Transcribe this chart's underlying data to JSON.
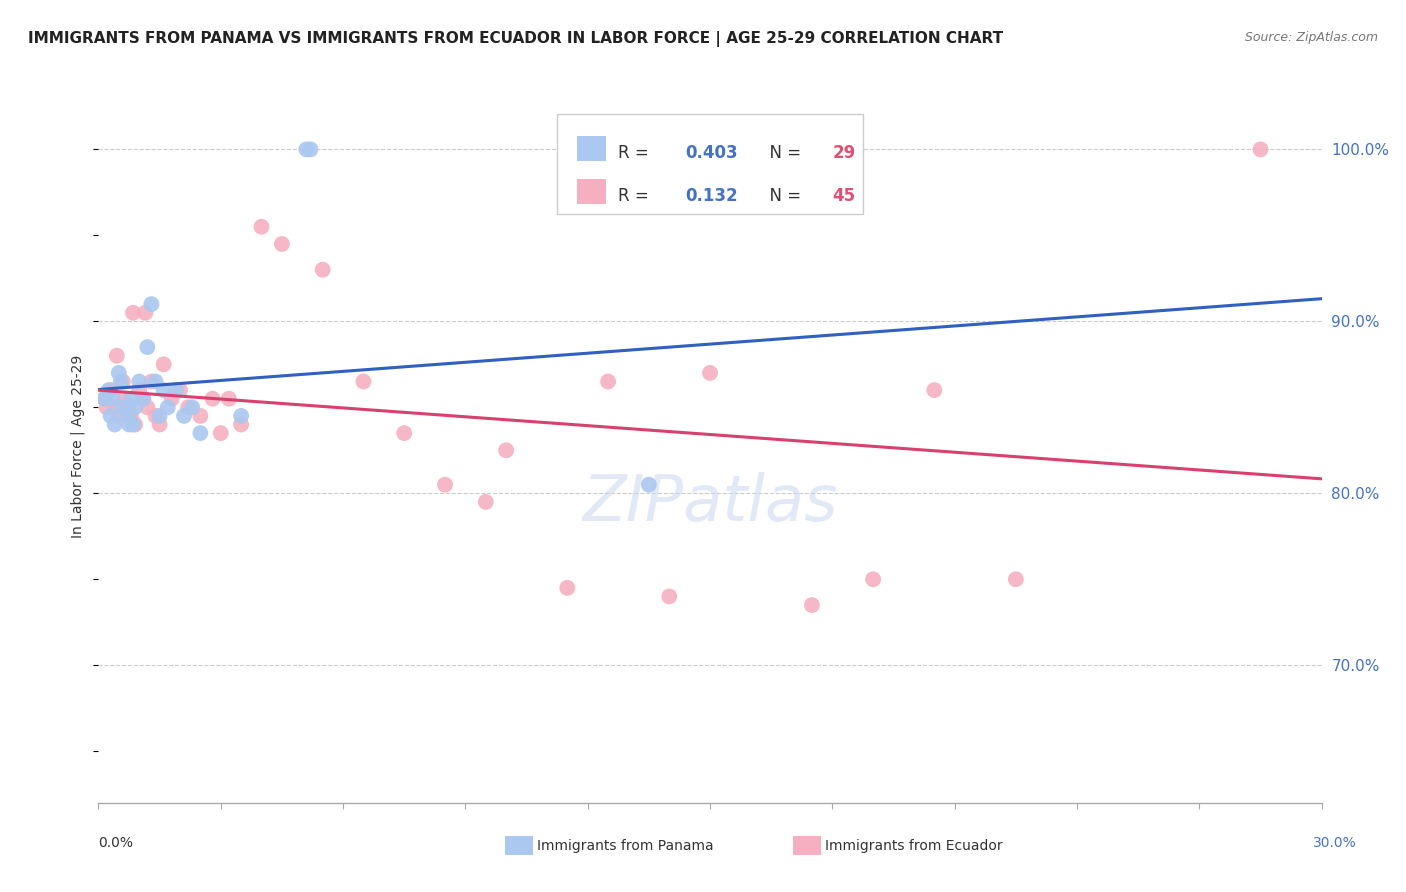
{
  "title": "IMMIGRANTS FROM PANAMA VS IMMIGRANTS FROM ECUADOR IN LABOR FORCE | AGE 25-29 CORRELATION CHART",
  "source": "Source: ZipAtlas.com",
  "ylabel": "In Labor Force | Age 25-29",
  "r_panama": 0.403,
  "n_panama": 29,
  "r_ecuador": 0.132,
  "n_ecuador": 45,
  "xlim": [
    0.0,
    30.0
  ],
  "ylim": [
    62.0,
    103.5
  ],
  "yticks": [
    70.0,
    80.0,
    90.0,
    100.0
  ],
  "xticks": [
    0.0,
    3.0,
    6.0,
    9.0,
    12.0,
    15.0,
    18.0,
    21.0,
    24.0,
    27.0,
    30.0
  ],
  "color_panama": "#aac8f0",
  "color_ecuador": "#f5afc0",
  "color_panama_line": "#3060c0",
  "color_ecuador_line": "#d84070",
  "color_axis_labels": "#4472c4",
  "panama_x": [
    0.15,
    0.25,
    0.3,
    0.35,
    0.4,
    0.5,
    0.55,
    0.6,
    0.7,
    0.75,
    0.8,
    0.85,
    0.9,
    1.0,
    1.1,
    1.2,
    1.3,
    1.4,
    1.5,
    1.6,
    1.7,
    1.9,
    2.1,
    2.3,
    2.5,
    3.5,
    5.1,
    5.2,
    13.5
  ],
  "panama_y": [
    85.5,
    86.0,
    84.5,
    85.5,
    84.0,
    87.0,
    86.5,
    85.0,
    84.5,
    84.0,
    85.5,
    84.0,
    85.0,
    86.5,
    85.5,
    88.5,
    91.0,
    86.5,
    84.5,
    86.0,
    85.0,
    86.0,
    84.5,
    85.0,
    83.5,
    84.5,
    100.0,
    100.0,
    80.5
  ],
  "ecuador_x": [
    0.15,
    0.2,
    0.3,
    0.4,
    0.5,
    0.6,
    0.65,
    0.75,
    0.8,
    0.9,
    1.0,
    1.1,
    1.2,
    1.3,
    1.4,
    1.5,
    1.6,
    1.8,
    2.0,
    2.2,
    2.5,
    2.8,
    3.0,
    3.2,
    3.5,
    4.0,
    4.5,
    5.5,
    6.5,
    7.5,
    9.5,
    10.0,
    11.5,
    12.5,
    14.0,
    15.0,
    17.5,
    19.0,
    20.5,
    22.5,
    0.45,
    0.85,
    1.15,
    8.5,
    28.5
  ],
  "ecuador_y": [
    85.5,
    85.0,
    86.0,
    85.0,
    84.5,
    86.5,
    85.5,
    85.0,
    84.5,
    84.0,
    86.0,
    85.5,
    85.0,
    86.5,
    84.5,
    84.0,
    87.5,
    85.5,
    86.0,
    85.0,
    84.5,
    85.5,
    83.5,
    85.5,
    84.0,
    95.5,
    94.5,
    93.0,
    86.5,
    83.5,
    79.5,
    82.5,
    74.5,
    86.5,
    74.0,
    87.0,
    73.5,
    75.0,
    86.0,
    75.0,
    88.0,
    90.5,
    90.5,
    80.5,
    100.0
  ]
}
